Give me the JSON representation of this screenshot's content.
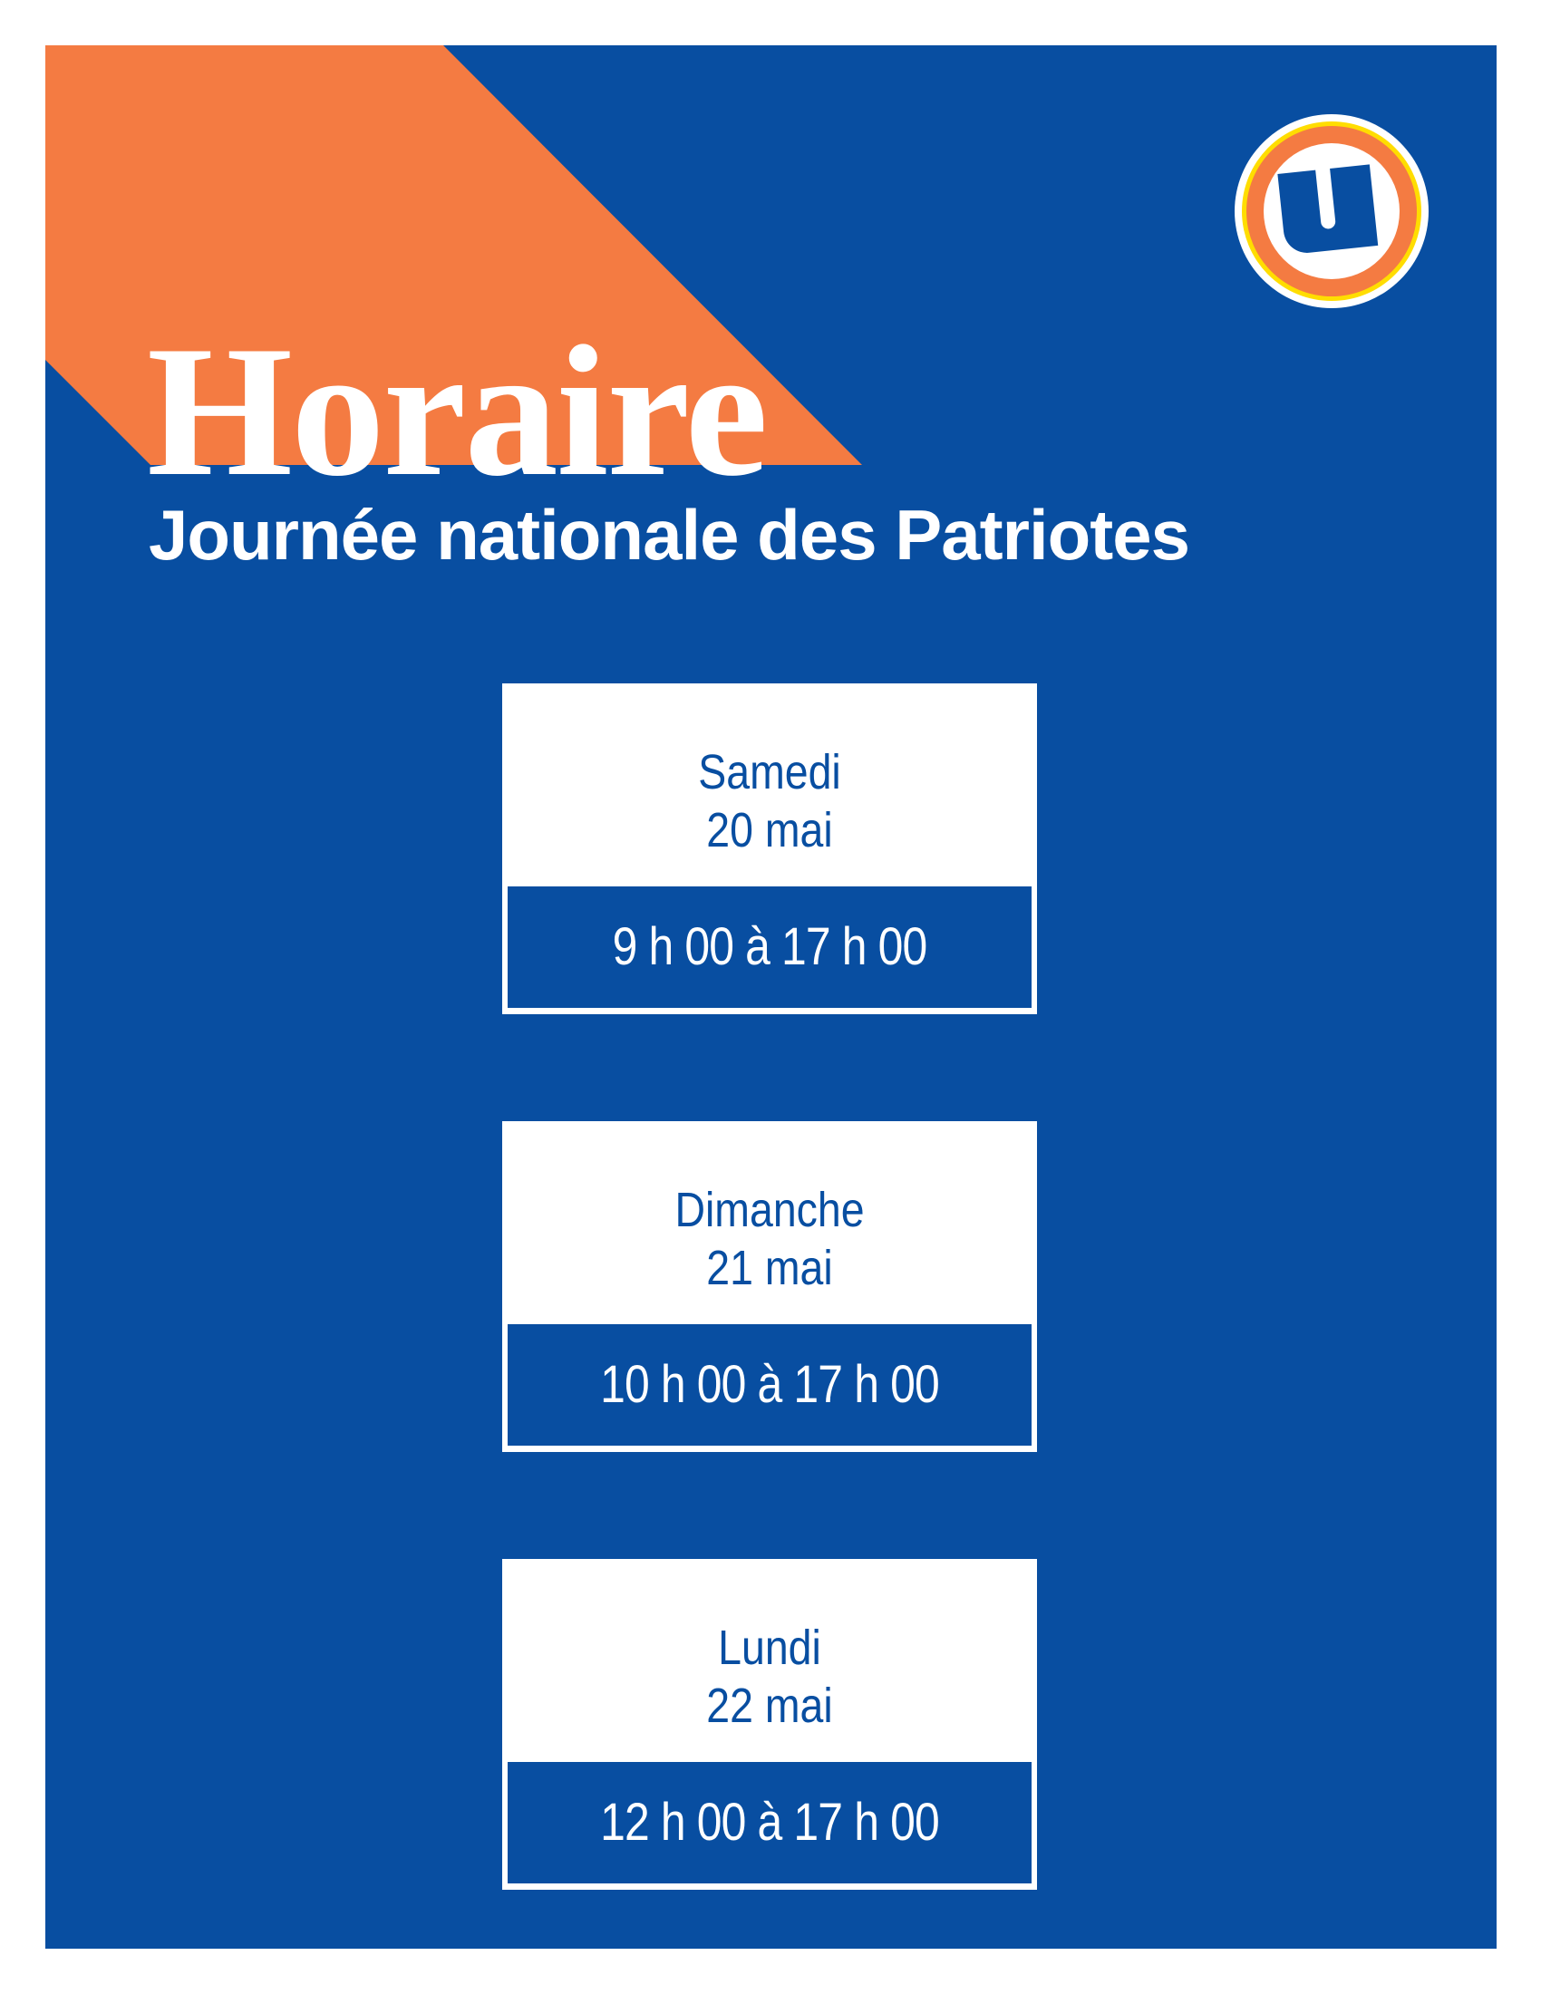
{
  "title": "Horaire",
  "subtitle": "Journée nationale des Patriotes",
  "logo": {
    "icon": "u-circle-logo",
    "letter": "U"
  },
  "colors": {
    "background": "#084ea1",
    "accent": "#f47b42",
    "ring_yellow": "#ffdd00",
    "text": "#ffffff"
  },
  "schedule": [
    {
      "day": "Samedi",
      "date": "20 mai",
      "hours": "9 h 00 à 17 h 00"
    },
    {
      "day": "Dimanche",
      "date": "21 mai",
      "hours": "10 h 00 à 17 h 00"
    },
    {
      "day": "Lundi",
      "date": "22 mai",
      "hours": "12 h 00 à 17 h 00"
    }
  ]
}
